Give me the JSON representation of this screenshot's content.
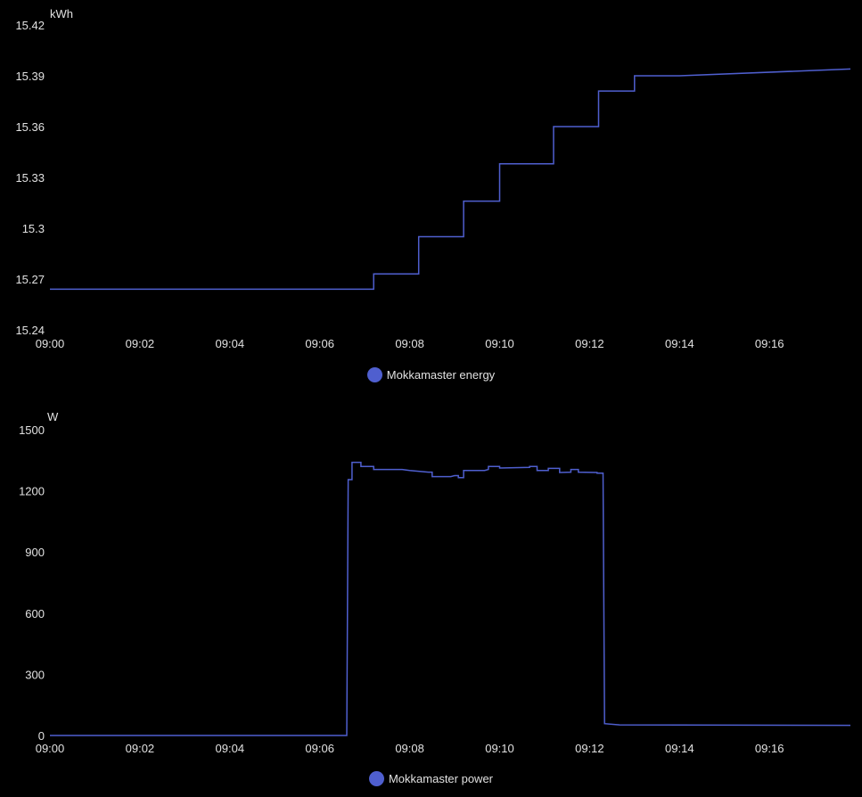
{
  "colors": {
    "background": "#000000",
    "text": "#e1e1e1",
    "series": "#4f5fcf"
  },
  "chart_data": [
    {
      "type": "line",
      "step": true,
      "ylabel": "kWh",
      "ylim": [
        15.24,
        15.42
      ],
      "yticks": [
        "15.42",
        "15.39",
        "15.36",
        "15.33",
        "15.3",
        "15.27",
        "15.24"
      ],
      "xlim": [
        "09:00",
        "09:17:48"
      ],
      "xticks": [
        "09:00",
        "09:02",
        "09:04",
        "09:06",
        "09:08",
        "09:10",
        "09:12",
        "09:14",
        "09:16"
      ],
      "grid": false,
      "legend": "bottom-center",
      "series": [
        {
          "name": "Mokkamaster energy",
          "color": "#4f5fcf",
          "points": [
            [
              "09:00:00",
              15.264
            ],
            [
              "09:07:12",
              15.264
            ],
            [
              "09:07:12",
              15.273
            ],
            [
              "09:08:12",
              15.273
            ],
            [
              "09:08:12",
              15.295
            ],
            [
              "09:09:12",
              15.295
            ],
            [
              "09:09:12",
              15.316
            ],
            [
              "09:10:00",
              15.316
            ],
            [
              "09:10:00",
              15.338
            ],
            [
              "09:11:12",
              15.338
            ],
            [
              "09:11:12",
              15.36
            ],
            [
              "09:12:12",
              15.36
            ],
            [
              "09:12:12",
              15.381
            ],
            [
              "09:13:00",
              15.381
            ],
            [
              "09:13:00",
              15.39
            ],
            [
              "09:14:00",
              15.39
            ],
            [
              "09:17:48",
              15.394
            ]
          ]
        }
      ]
    },
    {
      "type": "line",
      "step": true,
      "ylabel": "W",
      "ylim": [
        0,
        1500
      ],
      "yticks": [
        "1500",
        "1200",
        "900",
        "600",
        "300",
        "0"
      ],
      "xlim": [
        "09:00",
        "09:17:48"
      ],
      "xticks": [
        "09:00",
        "09:02",
        "09:04",
        "09:06",
        "09:08",
        "09:10",
        "09:12",
        "09:14",
        "09:16"
      ],
      "grid": false,
      "legend": "bottom-center",
      "series": [
        {
          "name": "Mokkamaster power",
          "color": "#4f5fcf",
          "points": [
            [
              "09:00:00",
              0
            ],
            [
              "09:06:36",
              0
            ],
            [
              "09:06:38",
              1255
            ],
            [
              "09:06:43",
              1255
            ],
            [
              "09:06:43",
              1340
            ],
            [
              "09:06:55",
              1340
            ],
            [
              "09:06:55",
              1320
            ],
            [
              "09:07:12",
              1320
            ],
            [
              "09:07:12",
              1305
            ],
            [
              "09:07:50",
              1305
            ],
            [
              "09:08:00",
              1300
            ],
            [
              "09:08:25",
              1292
            ],
            [
              "09:08:30",
              1292
            ],
            [
              "09:08:30",
              1270
            ],
            [
              "09:08:55",
              1270
            ],
            [
              "09:09:00",
              1275
            ],
            [
              "09:09:05",
              1275
            ],
            [
              "09:09:05",
              1265
            ],
            [
              "09:09:12",
              1265
            ],
            [
              "09:09:12",
              1300
            ],
            [
              "09:09:40",
              1300
            ],
            [
              "09:09:45",
              1305
            ],
            [
              "09:09:45",
              1320
            ],
            [
              "09:10:00",
              1320
            ],
            [
              "09:10:00",
              1312
            ],
            [
              "09:10:40",
              1315
            ],
            [
              "09:10:40",
              1320
            ],
            [
              "09:10:50",
              1320
            ],
            [
              "09:10:50",
              1300
            ],
            [
              "09:11:05",
              1300
            ],
            [
              "09:11:05",
              1310
            ],
            [
              "09:11:20",
              1310
            ],
            [
              "09:11:20",
              1290
            ],
            [
              "09:11:35",
              1292
            ],
            [
              "09:11:35",
              1305
            ],
            [
              "09:11:45",
              1305
            ],
            [
              "09:11:45",
              1292
            ],
            [
              "09:12:10",
              1290
            ],
            [
              "09:12:10",
              1287
            ],
            [
              "09:12:18",
              1287
            ],
            [
              "09:12:20",
              58
            ],
            [
              "09:12:40",
              52
            ],
            [
              "09:17:48",
              50
            ]
          ]
        }
      ]
    }
  ]
}
